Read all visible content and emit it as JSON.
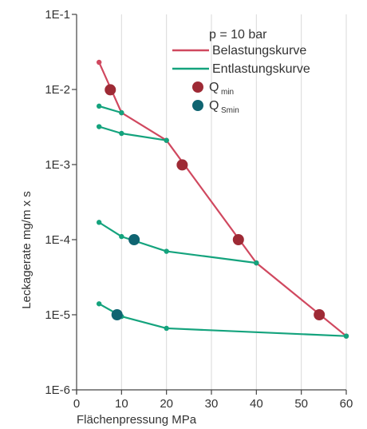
{
  "chart_data": {
    "type": "line",
    "xlabel": "Flächenpressung  MPa",
    "ylabel": "Leckagerate  mg/m x s",
    "xlim": [
      0,
      60
    ],
    "ylim": [
      1e-06,
      0.1
    ],
    "yscale": "log",
    "x_ticks": [
      "0",
      "10",
      "20",
      "30",
      "40",
      "50",
      "60"
    ],
    "x_tick_values": [
      0,
      10,
      20,
      30,
      40,
      50,
      60
    ],
    "y_ticks": [
      "1E-6",
      "1E-5",
      "1E-4",
      "1E-3",
      "1E-2",
      "1E-1"
    ],
    "y_tick_values": [
      1e-06,
      1e-05,
      0.0001,
      0.001,
      0.01,
      0.1
    ],
    "grid": "vertical",
    "legend_position": "top-right",
    "legend": {
      "title": "p = 10 bar",
      "items": [
        {
          "label": "Belastungskurve",
          "kind": "line",
          "color": "#d0485f"
        },
        {
          "label": "Entlastungskurve",
          "kind": "line",
          "color": "#14a37d"
        },
        {
          "label": "Q",
          "sub": "min",
          "kind": "marker",
          "color": "#9e2a35"
        },
        {
          "label": "Q",
          "sub": "Smin",
          "kind": "marker",
          "color": "#0f6471"
        }
      ]
    },
    "series": [
      {
        "name": "Belastungskurve",
        "color": "#d0485f",
        "points": [
          [
            5,
            0.023
          ],
          [
            10,
            0.0049
          ],
          [
            20,
            0.0021
          ],
          [
            40,
            4.9e-05
          ],
          [
            60,
            5.2e-06
          ]
        ]
      },
      {
        "color": "#14a37d",
        "points": [
          [
            5,
            0.006
          ],
          [
            10,
            0.0049
          ]
        ]
      },
      {
        "color": "#14a37d",
        "points": [
          [
            5,
            0.0032
          ],
          [
            10,
            0.0026
          ],
          [
            20,
            0.0021
          ]
        ]
      },
      {
        "color": "#14a37d",
        "points": [
          [
            5,
            0.00017
          ],
          [
            10,
            0.00011
          ],
          [
            20,
            7e-05
          ],
          [
            40,
            4.9e-05
          ]
        ]
      },
      {
        "color": "#14a37d",
        "points": [
          [
            5,
            1.4e-05
          ],
          [
            10,
            9.5e-06
          ],
          [
            20,
            6.6e-06
          ],
          [
            60,
            5.2e-06
          ]
        ]
      }
    ],
    "markers": [
      {
        "group": "Qmin",
        "color": "#9e2a35",
        "points": [
          [
            7.5,
            0.0099
          ],
          [
            23.5,
            0.00099
          ],
          [
            36,
            0.0001
          ],
          [
            54,
            1e-05
          ]
        ]
      },
      {
        "group": "QSmin",
        "color": "#0f6471",
        "points": [
          [
            12.8,
            0.0001
          ],
          [
            9,
            1e-05
          ]
        ]
      }
    ]
  }
}
